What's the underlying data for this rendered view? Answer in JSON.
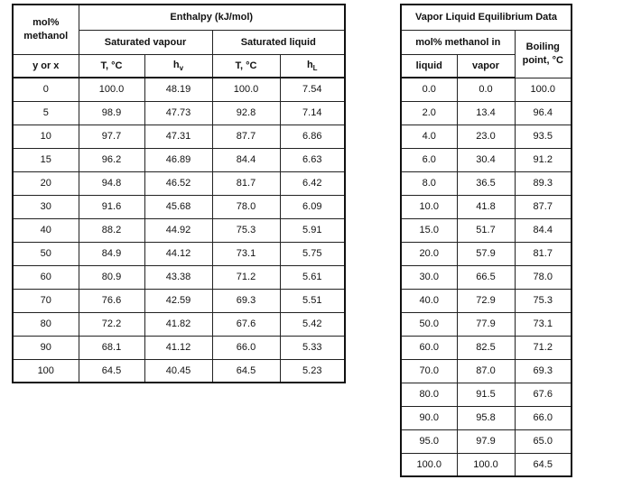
{
  "enthalpy_table": {
    "title": "Enthalpy (kJ/mol)",
    "corner": "mol% methanol",
    "group_vapour": "Saturated vapour",
    "group_liquid": "Saturated liquid",
    "columns": [
      "y or x",
      "T, °C",
      {
        "base": "h",
        "sub": "v"
      },
      "T, °C",
      {
        "base": "h",
        "sub": "L"
      }
    ],
    "rows": [
      [
        "0",
        "100.0",
        "48.19",
        "100.0",
        "7.54"
      ],
      [
        "5",
        "98.9",
        "47.73",
        "92.8",
        "7.14"
      ],
      [
        "10",
        "97.7",
        "47.31",
        "87.7",
        "6.86"
      ],
      [
        "15",
        "96.2",
        "46.89",
        "84.4",
        "6.63"
      ],
      [
        "20",
        "94.8",
        "46.52",
        "81.7",
        "6.42"
      ],
      [
        "30",
        "91.6",
        "45.68",
        "78.0",
        "6.09"
      ],
      [
        "40",
        "88.2",
        "44.92",
        "75.3",
        "5.91"
      ],
      [
        "50",
        "84.9",
        "44.12",
        "73.1",
        "5.75"
      ],
      [
        "60",
        "80.9",
        "43.38",
        "71.2",
        "5.61"
      ],
      [
        "70",
        "76.6",
        "42.59",
        "69.3",
        "5.51"
      ],
      [
        "80",
        "72.2",
        "41.82",
        "67.6",
        "5.42"
      ],
      [
        "90",
        "68.1",
        "41.12",
        "66.0",
        "5.33"
      ],
      [
        "100",
        "64.5",
        "40.45",
        "64.5",
        "5.23"
      ]
    ]
  },
  "vle_table": {
    "title": "Vapor Liquid Equilibrium Data",
    "group": "mol% methanol in",
    "boiling": "Boiling point, °C",
    "columns": [
      "liquid",
      "vapor"
    ],
    "rows": [
      [
        "0.0",
        "0.0",
        "100.0"
      ],
      [
        "2.0",
        "13.4",
        "96.4"
      ],
      [
        "4.0",
        "23.0",
        "93.5"
      ],
      [
        "6.0",
        "30.4",
        "91.2"
      ],
      [
        "8.0",
        "36.5",
        "89.3"
      ],
      [
        "10.0",
        "41.8",
        "87.7"
      ],
      [
        "15.0",
        "51.7",
        "84.4"
      ],
      [
        "20.0",
        "57.9",
        "81.7"
      ],
      [
        "30.0",
        "66.5",
        "78.0"
      ],
      [
        "40.0",
        "72.9",
        "75.3"
      ],
      [
        "50.0",
        "77.9",
        "73.1"
      ],
      [
        "60.0",
        "82.5",
        "71.2"
      ],
      [
        "70.0",
        "87.0",
        "69.3"
      ],
      [
        "80.0",
        "91.5",
        "67.6"
      ],
      [
        "90.0",
        "95.8",
        "66.0"
      ],
      [
        "95.0",
        "97.9",
        "65.0"
      ],
      [
        "100.0",
        "100.0",
        "64.5"
      ]
    ]
  }
}
